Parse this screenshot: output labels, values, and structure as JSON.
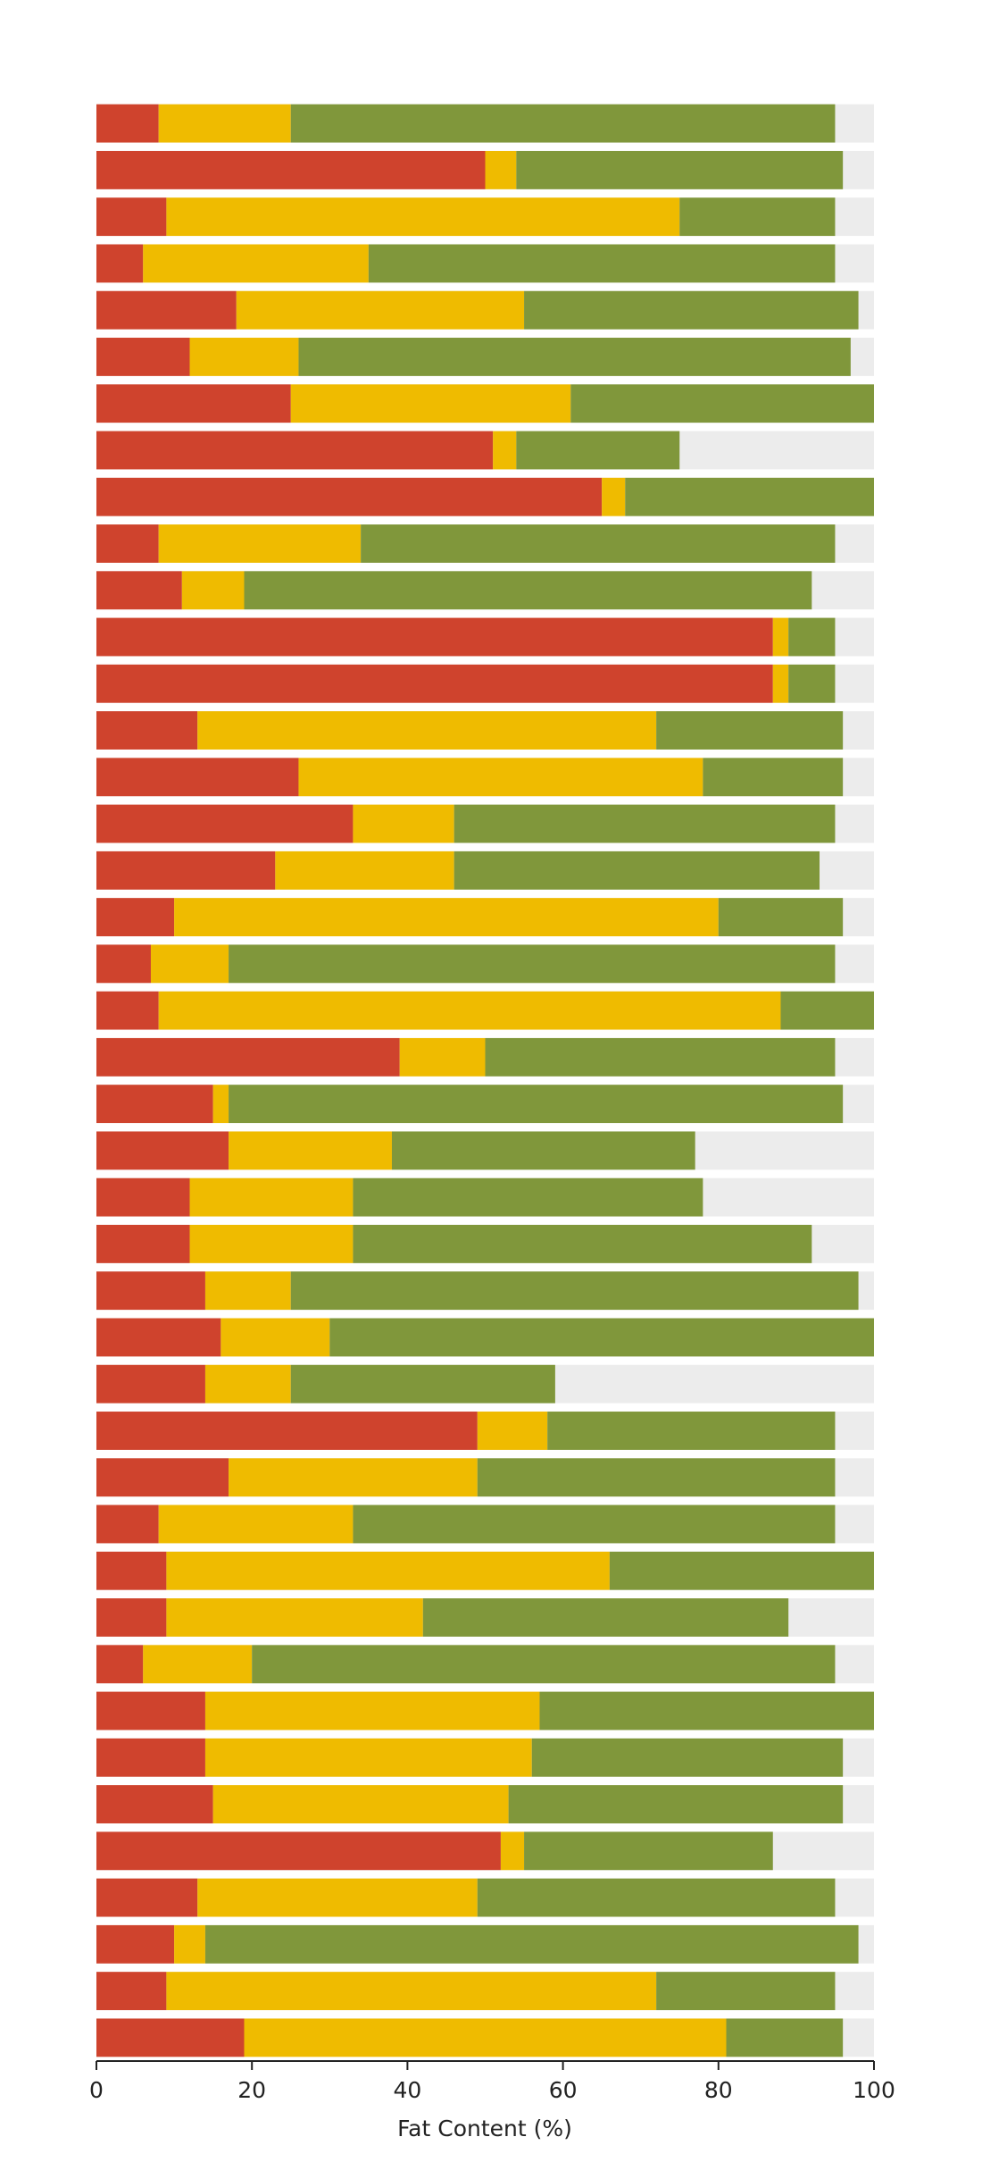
{
  "chart_data": {
    "type": "stacked-bar-horizontal",
    "x_label": "Fat Content (%)",
    "categories": [
      null,
      null,
      null,
      null,
      null,
      null,
      null,
      null,
      null,
      null,
      null,
      null,
      null,
      null,
      null,
      null,
      null,
      null,
      null,
      null,
      null,
      null,
      null,
      null,
      null,
      null,
      null,
      null,
      null,
      null,
      null,
      null,
      null,
      null,
      null,
      null,
      null,
      null,
      null,
      null,
      null,
      null
    ],
    "series": [
      {
        "color": "#cf432d",
        "values": [
          8,
          50,
          9,
          6,
          18,
          12,
          25,
          51,
          65,
          8,
          11,
          87,
          87,
          13,
          26,
          33,
          23,
          10,
          7,
          8,
          39,
          15,
          17,
          12,
          12,
          14,
          16,
          14,
          49,
          17,
          8,
          9,
          9,
          6,
          14,
          14,
          15,
          52,
          13,
          10,
          9,
          19
        ]
      },
      {
        "color": "#efbb00",
        "values": [
          17,
          4,
          66,
          29,
          37,
          14,
          36,
          3,
          3,
          26,
          8,
          2,
          2,
          59,
          52,
          13,
          23,
          70,
          10,
          80,
          11,
          2,
          21,
          21,
          21,
          11,
          14,
          11,
          9,
          32,
          25,
          57,
          33,
          14,
          43,
          42,
          38,
          3,
          36,
          4,
          63,
          62
        ]
      },
      {
        "color": "#80973b",
        "values": [
          70,
          42,
          20,
          60,
          43,
          71,
          39,
          21,
          32,
          61,
          73,
          6,
          6,
          24,
          18,
          49,
          47,
          16,
          78,
          12,
          45,
          79,
          39,
          45,
          59,
          73,
          70,
          34,
          37,
          46,
          62,
          34,
          47,
          75,
          43,
          40,
          43,
          32,
          46,
          84,
          23,
          15
        ]
      }
    ],
    "track_color": "#ececec",
    "xlim": [
      0,
      100
    ],
    "xticks": [
      0,
      20,
      40,
      60,
      80,
      100
    ]
  }
}
